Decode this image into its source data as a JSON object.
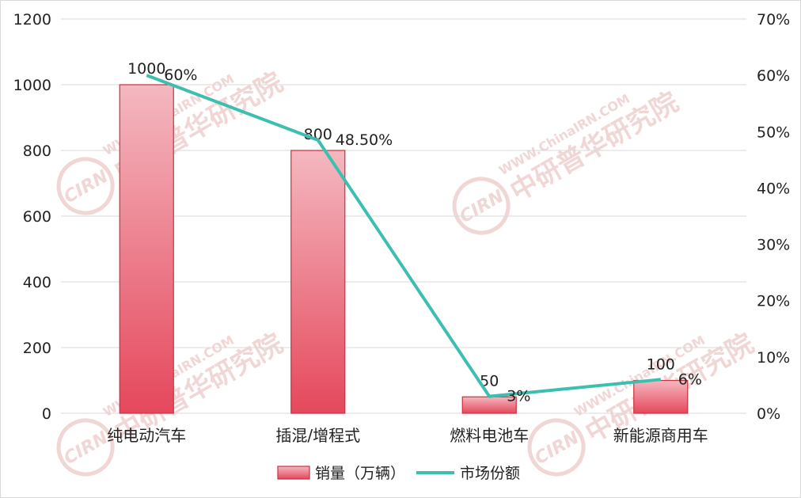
{
  "chart_data": {
    "type": "bar",
    "categories": [
      "纯电动汽车",
      "插混/增程式",
      "燃料电池车",
      "新能源商用车"
    ],
    "series": [
      {
        "name": "销量（万辆）",
        "type": "bar",
        "axis": "left",
        "values": [
          1000,
          800,
          50,
          100
        ],
        "labels": [
          "1000",
          "800",
          "50",
          "100"
        ]
      },
      {
        "name": "市场份额",
        "type": "line",
        "axis": "right",
        "values": [
          60,
          48.5,
          3,
          6
        ],
        "labels": [
          "60%",
          "48.50%",
          "3%",
          "6%"
        ]
      }
    ],
    "y_left": {
      "min": 0,
      "max": 1200,
      "ticks": [
        "0",
        "200",
        "400",
        "600",
        "800",
        "1000",
        "1200"
      ]
    },
    "y_right": {
      "min": 0,
      "max": 70,
      "ticks": [
        "0%",
        "10%",
        "20%",
        "30%",
        "40%",
        "50%",
        "60%",
        "70%"
      ]
    },
    "grid": true,
    "legend_position": "bottom",
    "colors": {
      "bar_top": "#f4b8c0",
      "bar_bottom": "#e5485c",
      "bar_stroke": "#c8313f",
      "line": "#3dbfb0",
      "grid": "#d9d9d9",
      "text": "#222222",
      "watermark": "#f1d6d6"
    }
  },
  "watermark": {
    "brand": "中研普华研究院",
    "url": "WWW.ChinaIRN.COM",
    "logo": "CIRN"
  }
}
